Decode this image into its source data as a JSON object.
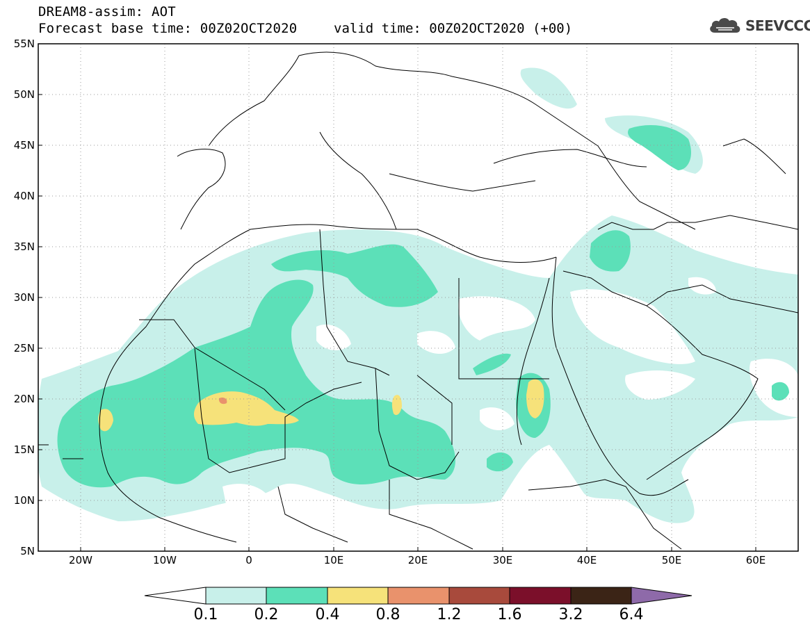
{
  "header": {
    "title": "DREAM8-assim: AOT",
    "base_time": "Forecast base time: 00Z02OCT2020",
    "valid_time": "valid time: 00Z02OCT2020 (+00)",
    "logo_text": "SEEVCCC",
    "logo_icon": "cloud-icon"
  },
  "map": {
    "region": "North Africa, Europe and Middle East",
    "lat_range": [
      5,
      55
    ],
    "lon_range": [
      -25,
      65
    ],
    "lat_labels": [
      "55N",
      "50N",
      "45N",
      "40N",
      "35N",
      "30N",
      "25N",
      "20N",
      "15N",
      "10N",
      "5N"
    ],
    "lon_labels": [
      "20W",
      "10W",
      "0",
      "10E",
      "20E",
      "30E",
      "40E",
      "50E",
      "60E"
    ],
    "grid": "dotted"
  },
  "colorbar": {
    "labels": [
      "0.1",
      "0.2",
      "0.4",
      "0.8",
      "1.2",
      "1.6",
      "3.2",
      "6.4"
    ],
    "colors": [
      "#ffffff",
      "#c8f0ea",
      "#5ce0b8",
      "#f6e27a",
      "#e9926c",
      "#a84a3c",
      "#7b0f2a",
      "#3b2416",
      "#8e6aa9"
    ]
  },
  "colors": {
    "aot_01_02": "#c8f0ea",
    "aot_02_04": "#5ce0b8",
    "aot_04_08": "#f6e27a",
    "aot_08_12": "#e9926c"
  }
}
